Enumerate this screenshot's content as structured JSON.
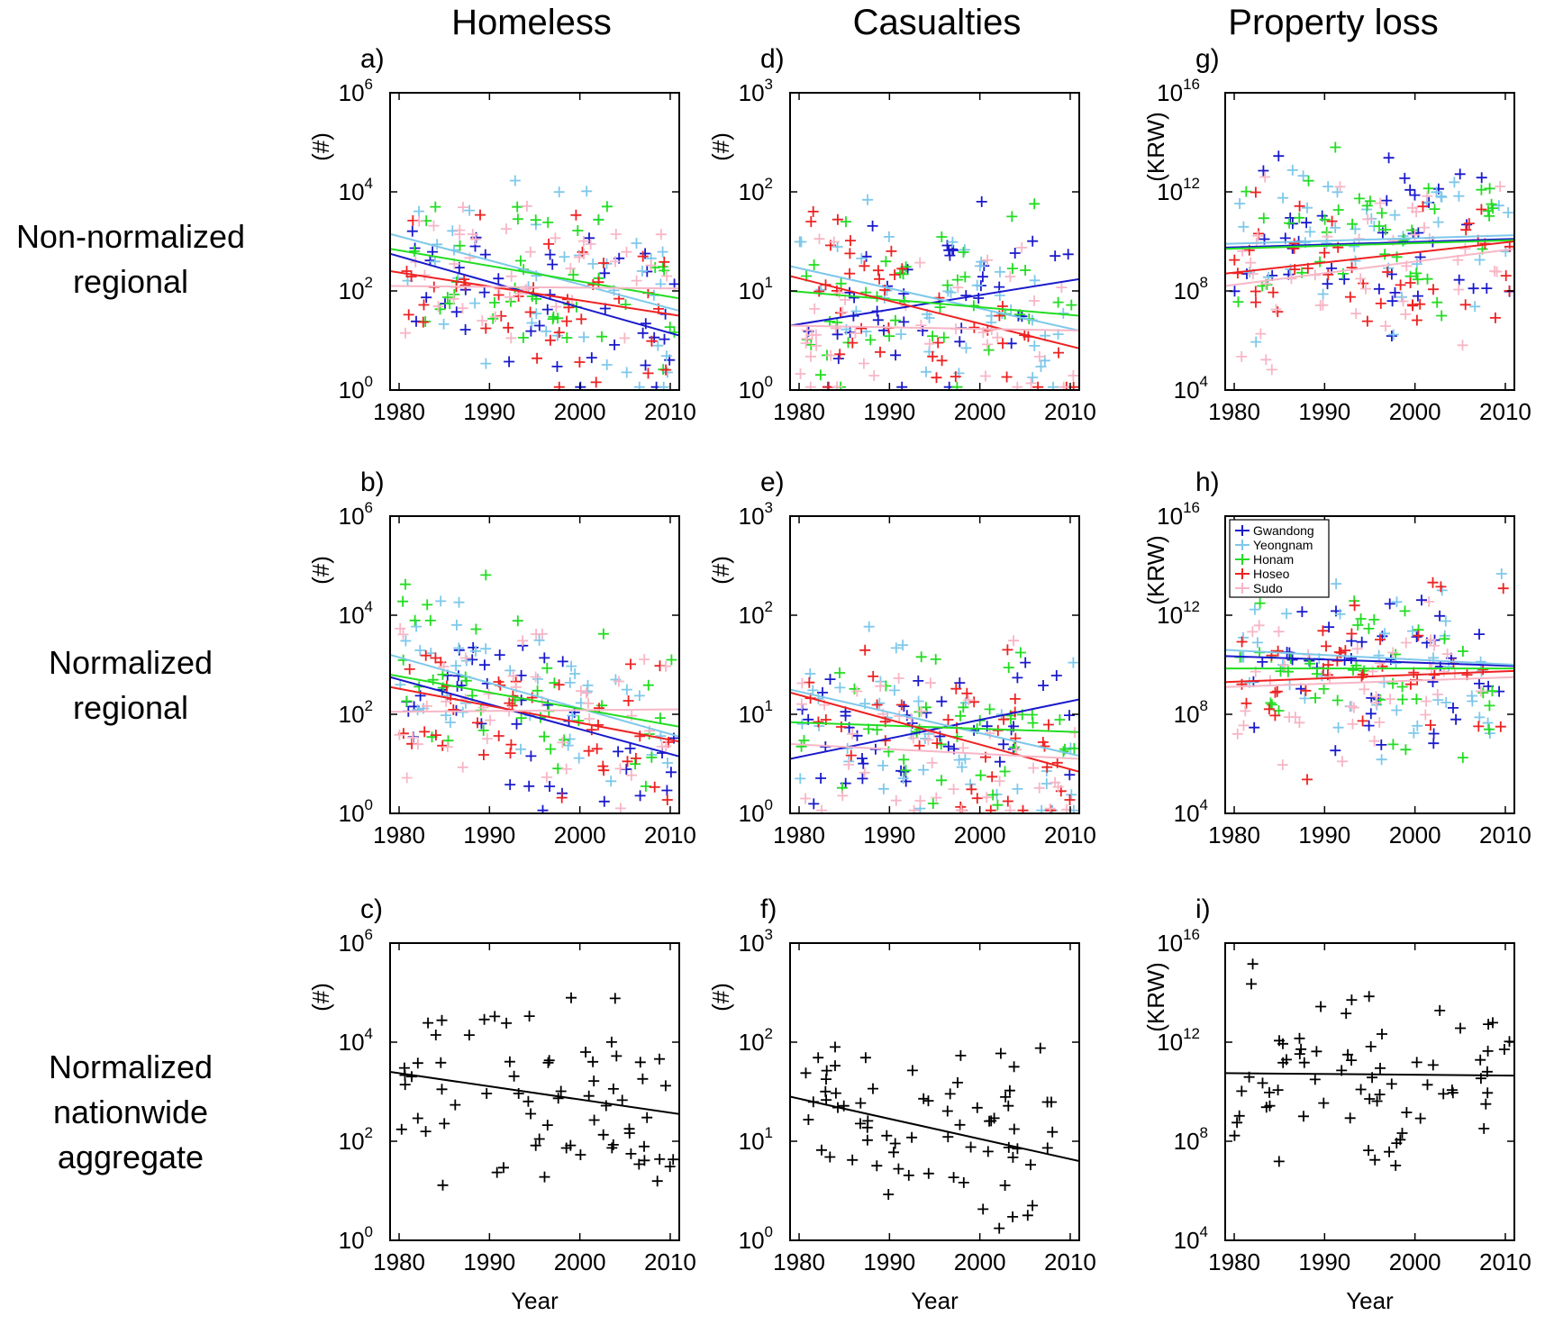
{
  "figure": {
    "column_titles": [
      "Homeless",
      "Casualties",
      "Property loss"
    ],
    "row_labels": [
      [
        "Non-normalized",
        "regional"
      ],
      [
        "Normalized",
        "regional"
      ],
      [
        "Normalized",
        "nationwide",
        "aggregate"
      ]
    ],
    "legend": [
      {
        "name": "Gwandong",
        "color": "#1a1acc"
      },
      {
        "name": "Yeongnam",
        "color": "#7ec8ea"
      },
      {
        "name": "Honam",
        "color": "#22dd22"
      },
      {
        "name": "Hoseo",
        "color": "#ee2222"
      },
      {
        "name": "Sudo",
        "color": "#f7b6c6"
      }
    ],
    "aggregate_color": "#000000"
  },
  "chart_data": [
    {
      "type": "scatter",
      "panel": "a)",
      "row": 0,
      "col": 0,
      "ylabel": "(#)",
      "xlabel": "",
      "xlim": [
        1979,
        2011
      ],
      "ylim_log10": [
        0,
        6
      ],
      "y_scale": "log",
      "xticks": [
        "1980",
        "1990",
        "2000",
        "2010"
      ],
      "yticks": [
        {
          "base": "10",
          "exp": "0"
        },
        {
          "base": "10",
          "exp": "2"
        },
        {
          "base": "10",
          "exp": "4"
        },
        {
          "base": "10",
          "exp": "6"
        }
      ],
      "trends_log10": [
        {
          "series": "Gwandong",
          "x": [
            1979,
            2011
          ],
          "y": [
            2.75,
            1.1
          ]
        },
        {
          "series": "Yeongnam",
          "x": [
            1979,
            2011
          ],
          "y": [
            3.15,
            1.6
          ]
        },
        {
          "series": "Honam",
          "x": [
            1979,
            2011
          ],
          "y": [
            2.85,
            1.85
          ]
        },
        {
          "series": "Hoseo",
          "x": [
            1979,
            2011
          ],
          "y": [
            2.4,
            1.5
          ]
        },
        {
          "series": "Sudo",
          "x": [
            1979,
            2011
          ],
          "y": [
            2.1,
            2.05
          ]
        }
      ]
    },
    {
      "type": "scatter",
      "panel": "b)",
      "row": 1,
      "col": 0,
      "ylabel": "(#)",
      "xlabel": "",
      "xlim": [
        1979,
        2011
      ],
      "ylim_log10": [
        0,
        6
      ],
      "y_scale": "log",
      "xticks": [
        "1980",
        "1990",
        "2000",
        "2010"
      ],
      "yticks": [
        {
          "base": "10",
          "exp": "0"
        },
        {
          "base": "10",
          "exp": "2"
        },
        {
          "base": "10",
          "exp": "4"
        },
        {
          "base": "10",
          "exp": "6"
        }
      ],
      "trends_log10": [
        {
          "series": "Gwandong",
          "x": [
            1979,
            2011
          ],
          "y": [
            2.75,
            1.15
          ]
        },
        {
          "series": "Yeongnam",
          "x": [
            1979,
            2011
          ],
          "y": [
            3.2,
            1.55
          ]
        },
        {
          "series": "Honam",
          "x": [
            1979,
            2011
          ],
          "y": [
            2.8,
            1.75
          ]
        },
        {
          "series": "Hoseo",
          "x": [
            1979,
            2011
          ],
          "y": [
            2.55,
            1.45
          ]
        },
        {
          "series": "Sudo",
          "x": [
            1979,
            2011
          ],
          "y": [
            2.05,
            2.1
          ]
        }
      ]
    },
    {
      "type": "scatter",
      "panel": "c)",
      "row": 2,
      "col": 0,
      "ylabel": "(#)",
      "xlabel": "Year",
      "xlim": [
        1979,
        2011
      ],
      "ylim_log10": [
        0,
        6
      ],
      "y_scale": "log",
      "xticks": [
        "1980",
        "1990",
        "2000",
        "2010"
      ],
      "yticks": [
        {
          "base": "10",
          "exp": "0"
        },
        {
          "base": "10",
          "exp": "2"
        },
        {
          "base": "10",
          "exp": "4"
        },
        {
          "base": "10",
          "exp": "6"
        }
      ],
      "trends_log10": [
        {
          "series": "aggregate",
          "x": [
            1979,
            2011
          ],
          "y": [
            3.4,
            2.55
          ]
        }
      ]
    },
    {
      "type": "scatter",
      "panel": "d)",
      "row": 0,
      "col": 1,
      "ylabel": "(#)",
      "xlabel": "",
      "xlim": [
        1979,
        2011
      ],
      "ylim_log10": [
        0,
        3
      ],
      "y_scale": "log",
      "xticks": [
        "1980",
        "1990",
        "2000",
        "2010"
      ],
      "yticks": [
        {
          "base": "10",
          "exp": "0"
        },
        {
          "base": "10",
          "exp": "1"
        },
        {
          "base": "10",
          "exp": "2"
        },
        {
          "base": "10",
          "exp": "3"
        }
      ],
      "trends_log10": [
        {
          "series": "Gwandong",
          "x": [
            1979,
            2011
          ],
          "y": [
            0.65,
            1.12
          ]
        },
        {
          "series": "Yeongnam",
          "x": [
            1979,
            2011
          ],
          "y": [
            1.25,
            0.6
          ]
        },
        {
          "series": "Honam",
          "x": [
            1979,
            2011
          ],
          "y": [
            1.0,
            0.75
          ]
        },
        {
          "series": "Hoseo",
          "x": [
            1979,
            2011
          ],
          "y": [
            1.15,
            0.42
          ]
        },
        {
          "series": "Sudo",
          "x": [
            1979,
            2011
          ],
          "y": [
            0.65,
            0.6
          ]
        }
      ]
    },
    {
      "type": "scatter",
      "panel": "e)",
      "row": 1,
      "col": 1,
      "ylabel": "(#)",
      "xlabel": "",
      "xlim": [
        1979,
        2011
      ],
      "ylim_log10": [
        0,
        3
      ],
      "y_scale": "log",
      "xticks": [
        "1980",
        "1990",
        "2000",
        "2010"
      ],
      "yticks": [
        {
          "base": "10",
          "exp": "0"
        },
        {
          "base": "10",
          "exp": "1"
        },
        {
          "base": "10",
          "exp": "2"
        },
        {
          "base": "10",
          "exp": "3"
        }
      ],
      "trends_log10": [
        {
          "series": "Gwandong",
          "x": [
            1979,
            2011
          ],
          "y": [
            0.55,
            1.15
          ]
        },
        {
          "series": "Yeongnam",
          "x": [
            1979,
            2011
          ],
          "y": [
            1.25,
            0.58
          ]
        },
        {
          "series": "Honam",
          "x": [
            1979,
            2011
          ],
          "y": [
            0.92,
            0.82
          ]
        },
        {
          "series": "Hoseo",
          "x": [
            1979,
            2011
          ],
          "y": [
            1.22,
            0.42
          ]
        },
        {
          "series": "Sudo",
          "x": [
            1979,
            2011
          ],
          "y": [
            0.7,
            0.55
          ]
        }
      ]
    },
    {
      "type": "scatter",
      "panel": "f)",
      "row": 2,
      "col": 1,
      "ylabel": "(#)",
      "xlabel": "Year",
      "xlim": [
        1979,
        2011
      ],
      "ylim_log10": [
        0,
        3
      ],
      "y_scale": "log",
      "xticks": [
        "1980",
        "1990",
        "2000",
        "2010"
      ],
      "yticks": [
        {
          "base": "10",
          "exp": "0"
        },
        {
          "base": "10",
          "exp": "1"
        },
        {
          "base": "10",
          "exp": "2"
        },
        {
          "base": "10",
          "exp": "3"
        }
      ],
      "trends_log10": [
        {
          "series": "aggregate",
          "x": [
            1979,
            2011
          ],
          "y": [
            1.45,
            0.8
          ]
        }
      ]
    },
    {
      "type": "scatter",
      "panel": "g)",
      "row": 0,
      "col": 2,
      "ylabel": "(KRW)",
      "xlabel": "",
      "xlim": [
        1979,
        2011
      ],
      "ylim_log10": [
        4,
        16
      ],
      "y_scale": "log",
      "xticks": [
        "1980",
        "1990",
        "2000",
        "2010"
      ],
      "yticks": [
        {
          "base": "10",
          "exp": "4"
        },
        {
          "base": "10",
          "exp": "8"
        },
        {
          "base": "10",
          "exp": "12"
        },
        {
          "base": "10",
          "exp": "16"
        }
      ],
      "trends_log10": [
        {
          "series": "Gwandong",
          "x": [
            1979,
            2011
          ],
          "y": [
            9.75,
            10.1
          ]
        },
        {
          "series": "Yeongnam",
          "x": [
            1979,
            2011
          ],
          "y": [
            9.9,
            10.25
          ]
        },
        {
          "series": "Honam",
          "x": [
            1979,
            2011
          ],
          "y": [
            9.7,
            10.05
          ]
        },
        {
          "series": "Hoseo",
          "x": [
            1979,
            2011
          ],
          "y": [
            8.7,
            10.0
          ]
        },
        {
          "series": "Sudo",
          "x": [
            1979,
            2011
          ],
          "y": [
            8.2,
            9.7
          ]
        }
      ]
    },
    {
      "type": "scatter",
      "panel": "h)",
      "row": 1,
      "col": 2,
      "ylabel": "(KRW)",
      "xlabel": "",
      "xlim": [
        1979,
        2011
      ],
      "ylim_log10": [
        4,
        16
      ],
      "y_scale": "log",
      "xticks": [
        "1980",
        "1990",
        "2000",
        "2010"
      ],
      "yticks": [
        {
          "base": "10",
          "exp": "4"
        },
        {
          "base": "10",
          "exp": "8"
        },
        {
          "base": "10",
          "exp": "12"
        },
        {
          "base": "10",
          "exp": "16"
        }
      ],
      "trends_log10": [
        {
          "series": "Gwandong",
          "x": [
            1979,
            2011
          ],
          "y": [
            10.35,
            9.95
          ]
        },
        {
          "series": "Yeongnam",
          "x": [
            1979,
            2011
          ],
          "y": [
            10.6,
            10.0
          ]
        },
        {
          "series": "Honam",
          "x": [
            1979,
            2011
          ],
          "y": [
            9.85,
            9.85
          ]
        },
        {
          "series": "Hoseo",
          "x": [
            1979,
            2011
          ],
          "y": [
            9.3,
            9.75
          ]
        },
        {
          "series": "Sudo",
          "x": [
            1979,
            2011
          ],
          "y": [
            9.1,
            9.5
          ]
        }
      ]
    },
    {
      "type": "scatter",
      "panel": "i)",
      "row": 2,
      "col": 2,
      "ylabel": "(KRW)",
      "xlabel": "Year",
      "xlim": [
        1979,
        2011
      ],
      "ylim_log10": [
        4,
        16
      ],
      "y_scale": "log",
      "xticks": [
        "1980",
        "1990",
        "2000",
        "2010"
      ],
      "yticks": [
        {
          "base": "10",
          "exp": "4"
        },
        {
          "base": "10",
          "exp": "8"
        },
        {
          "base": "10",
          "exp": "12"
        },
        {
          "base": "10",
          "exp": "16"
        }
      ],
      "trends_log10": [
        {
          "series": "aggregate",
          "x": [
            1979,
            2011
          ],
          "y": [
            10.75,
            10.65
          ]
        }
      ]
    }
  ]
}
